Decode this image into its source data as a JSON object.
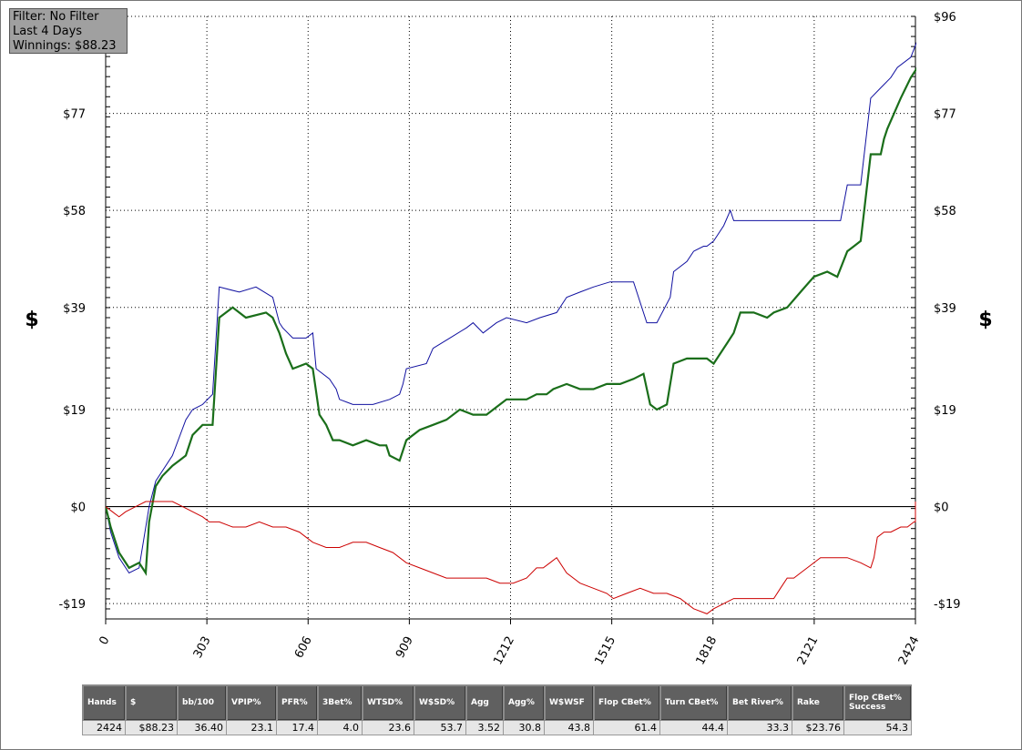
{
  "filter_box": {
    "line1": "Filter: No Filter",
    "line2": "Last 4 Days",
    "line3": "Winnings: $88.23"
  },
  "chart_data": {
    "type": "line",
    "ylabel_left": "$",
    "ylabel_right": "$",
    "x_ticks": [
      0,
      303,
      606,
      909,
      1212,
      1515,
      1818,
      2121,
      2424
    ],
    "y_ticks": [
      -19,
      0,
      19,
      39,
      58,
      77,
      96
    ],
    "y_tick_labels": [
      "-$19",
      "$0",
      "$19",
      "$39",
      "$58",
      "$77",
      "$96"
    ],
    "xlim": [
      0,
      2424
    ],
    "ylim": [
      -22,
      96
    ],
    "grid": true,
    "series": [
      {
        "color": "#1010a0",
        "points": [
          [
            0,
            0
          ],
          [
            15,
            -5
          ],
          [
            40,
            -10
          ],
          [
            70,
            -13
          ],
          [
            100,
            -12
          ],
          [
            130,
            0
          ],
          [
            150,
            5
          ],
          [
            200,
            10
          ],
          [
            240,
            17
          ],
          [
            260,
            19
          ],
          [
            290,
            20
          ],
          [
            320,
            22
          ],
          [
            340,
            43
          ],
          [
            400,
            42
          ],
          [
            450,
            43
          ],
          [
            500,
            41
          ],
          [
            520,
            36
          ],
          [
            530,
            35
          ],
          [
            560,
            33
          ],
          [
            600,
            33
          ],
          [
            620,
            34
          ],
          [
            630,
            27
          ],
          [
            670,
            25
          ],
          [
            690,
            23
          ],
          [
            700,
            21
          ],
          [
            740,
            20
          ],
          [
            800,
            20
          ],
          [
            850,
            21
          ],
          [
            880,
            22
          ],
          [
            890,
            24
          ],
          [
            900,
            27
          ],
          [
            960,
            28
          ],
          [
            980,
            31
          ],
          [
            1030,
            33
          ],
          [
            1080,
            35
          ],
          [
            1100,
            36
          ],
          [
            1130,
            34
          ],
          [
            1170,
            36
          ],
          [
            1200,
            37
          ],
          [
            1260,
            36
          ],
          [
            1300,
            37
          ],
          [
            1350,
            38
          ],
          [
            1380,
            41
          ],
          [
            1420,
            42
          ],
          [
            1460,
            43
          ],
          [
            1510,
            44
          ],
          [
            1560,
            44
          ],
          [
            1580,
            44
          ],
          [
            1620,
            36
          ],
          [
            1650,
            36
          ],
          [
            1690,
            41
          ],
          [
            1700,
            46
          ],
          [
            1740,
            48
          ],
          [
            1760,
            50
          ],
          [
            1790,
            51
          ],
          [
            1800,
            51
          ],
          [
            1820,
            52
          ],
          [
            1850,
            55
          ],
          [
            1870,
            58
          ],
          [
            1880,
            56
          ],
          [
            1950,
            56
          ],
          [
            2000,
            56
          ],
          [
            2050,
            56
          ],
          [
            2090,
            56
          ],
          [
            2170,
            56
          ],
          [
            2200,
            56
          ],
          [
            2220,
            63
          ],
          [
            2260,
            63
          ],
          [
            2290,
            80
          ],
          [
            2320,
            82
          ],
          [
            2350,
            84
          ],
          [
            2370,
            86
          ],
          [
            2410,
            88
          ],
          [
            2440,
            93
          ],
          [
            2460,
            94
          ],
          [
            2480,
            96
          ],
          [
            2500,
            99
          ],
          [
            2510,
            99
          ]
        ]
      },
      {
        "color": "#1a6e1a",
        "points": [
          [
            0,
            0
          ],
          [
            15,
            -4
          ],
          [
            40,
            -9
          ],
          [
            70,
            -12
          ],
          [
            100,
            -11
          ],
          [
            120,
            -13
          ],
          [
            130,
            -3
          ],
          [
            150,
            4
          ],
          [
            170,
            6
          ],
          [
            200,
            8
          ],
          [
            220,
            9
          ],
          [
            240,
            10
          ],
          [
            260,
            14
          ],
          [
            290,
            16
          ],
          [
            320,
            16
          ],
          [
            340,
            37
          ],
          [
            380,
            39
          ],
          [
            420,
            37
          ],
          [
            480,
            38
          ],
          [
            500,
            37
          ],
          [
            520,
            34
          ],
          [
            540,
            30
          ],
          [
            560,
            27
          ],
          [
            600,
            28
          ],
          [
            620,
            27
          ],
          [
            640,
            18
          ],
          [
            660,
            16
          ],
          [
            680,
            13
          ],
          [
            700,
            13
          ],
          [
            740,
            12
          ],
          [
            780,
            13
          ],
          [
            820,
            12
          ],
          [
            840,
            12
          ],
          [
            850,
            10
          ],
          [
            880,
            9
          ],
          [
            900,
            13
          ],
          [
            940,
            15
          ],
          [
            980,
            16
          ],
          [
            1020,
            17
          ],
          [
            1060,
            19
          ],
          [
            1100,
            18
          ],
          [
            1140,
            18
          ],
          [
            1180,
            20
          ],
          [
            1200,
            21
          ],
          [
            1240,
            21
          ],
          [
            1260,
            21
          ],
          [
            1290,
            22
          ],
          [
            1320,
            22
          ],
          [
            1340,
            23
          ],
          [
            1380,
            24
          ],
          [
            1420,
            23
          ],
          [
            1460,
            23
          ],
          [
            1500,
            24
          ],
          [
            1540,
            24
          ],
          [
            1580,
            25
          ],
          [
            1610,
            26
          ],
          [
            1630,
            20
          ],
          [
            1650,
            19
          ],
          [
            1680,
            20
          ],
          [
            1700,
            28
          ],
          [
            1740,
            29
          ],
          [
            1780,
            29
          ],
          [
            1800,
            29
          ],
          [
            1820,
            28
          ],
          [
            1860,
            32
          ],
          [
            1880,
            34
          ],
          [
            1900,
            38
          ],
          [
            1940,
            38
          ],
          [
            1980,
            37
          ],
          [
            2000,
            38
          ],
          [
            2040,
            39
          ],
          [
            2080,
            42
          ],
          [
            2120,
            45
          ],
          [
            2160,
            46
          ],
          [
            2190,
            45
          ],
          [
            2220,
            50
          ],
          [
            2240,
            51
          ],
          [
            2260,
            52
          ],
          [
            2290,
            69
          ],
          [
            2320,
            69
          ],
          [
            2330,
            72
          ],
          [
            2340,
            74
          ],
          [
            2380,
            80
          ],
          [
            2410,
            84
          ],
          [
            2430,
            86
          ],
          [
            2450,
            92
          ],
          [
            2470,
            90
          ],
          [
            2490,
            91
          ],
          [
            2500,
            83
          ],
          [
            2510,
            83
          ],
          [
            2520,
            83
          ]
        ]
      },
      {
        "color": "#cc0000",
        "points": [
          [
            0,
            0
          ],
          [
            20,
            -1
          ],
          [
            40,
            -2
          ],
          [
            60,
            -1
          ],
          [
            90,
            0
          ],
          [
            120,
            1
          ],
          [
            150,
            1
          ],
          [
            180,
            1
          ],
          [
            200,
            1
          ],
          [
            230,
            0
          ],
          [
            260,
            -1
          ],
          [
            290,
            -2
          ],
          [
            310,
            -3
          ],
          [
            340,
            -3
          ],
          [
            380,
            -4
          ],
          [
            420,
            -4
          ],
          [
            460,
            -3
          ],
          [
            500,
            -4
          ],
          [
            540,
            -4
          ],
          [
            580,
            -5
          ],
          [
            600,
            -6
          ],
          [
            620,
            -7
          ],
          [
            660,
            -8
          ],
          [
            700,
            -8
          ],
          [
            740,
            -7
          ],
          [
            780,
            -7
          ],
          [
            820,
            -8
          ],
          [
            860,
            -9
          ],
          [
            900,
            -11
          ],
          [
            940,
            -12
          ],
          [
            980,
            -13
          ],
          [
            1020,
            -14
          ],
          [
            1060,
            -14
          ],
          [
            1100,
            -14
          ],
          [
            1140,
            -14
          ],
          [
            1180,
            -15
          ],
          [
            1220,
            -15
          ],
          [
            1260,
            -14
          ],
          [
            1290,
            -12
          ],
          [
            1310,
            -12
          ],
          [
            1330,
            -11
          ],
          [
            1350,
            -10
          ],
          [
            1380,
            -13
          ],
          [
            1420,
            -15
          ],
          [
            1460,
            -16
          ],
          [
            1500,
            -17
          ],
          [
            1520,
            -18
          ],
          [
            1560,
            -17
          ],
          [
            1600,
            -16
          ],
          [
            1640,
            -17
          ],
          [
            1680,
            -17
          ],
          [
            1720,
            -18
          ],
          [
            1760,
            -20
          ],
          [
            1800,
            -21
          ],
          [
            1820,
            -20
          ],
          [
            1850,
            -19
          ],
          [
            1880,
            -18
          ],
          [
            1920,
            -18
          ],
          [
            1960,
            -18
          ],
          [
            2000,
            -18
          ],
          [
            2020,
            -16
          ],
          [
            2040,
            -14
          ],
          [
            2060,
            -14
          ],
          [
            2080,
            -13
          ],
          [
            2100,
            -12
          ],
          [
            2140,
            -10
          ],
          [
            2180,
            -10
          ],
          [
            2220,
            -10
          ],
          [
            2260,
            -11
          ],
          [
            2290,
            -12
          ],
          [
            2300,
            -10
          ],
          [
            2310,
            -6
          ],
          [
            2330,
            -5
          ],
          [
            2350,
            -5
          ],
          [
            2380,
            -4
          ],
          [
            2400,
            -4
          ],
          [
            2420,
            -3
          ],
          [
            2424,
            -3
          ],
          [
            2424,
            1
          ],
          [
            2424,
            0
          ]
        ]
      }
    ]
  },
  "stats": {
    "headers": [
      "Hands",
      "$",
      "bb/100",
      "VPIP%",
      "PFR%",
      "3Bet%",
      "WTSD%",
      "W$SD%",
      "Agg",
      "Agg%",
      "W$WSF",
      "Flop CBet%",
      "Turn CBet%",
      "Bet River%",
      "Rake",
      "Flop CBet% Success"
    ],
    "values": [
      "2424",
      "$88.23",
      "36.40",
      "23.1",
      "17.4",
      "4.0",
      "23.6",
      "53.7",
      "3.52",
      "30.8",
      "43.8",
      "61.4",
      "44.4",
      "33.3",
      "$23.76",
      "54.3"
    ]
  }
}
